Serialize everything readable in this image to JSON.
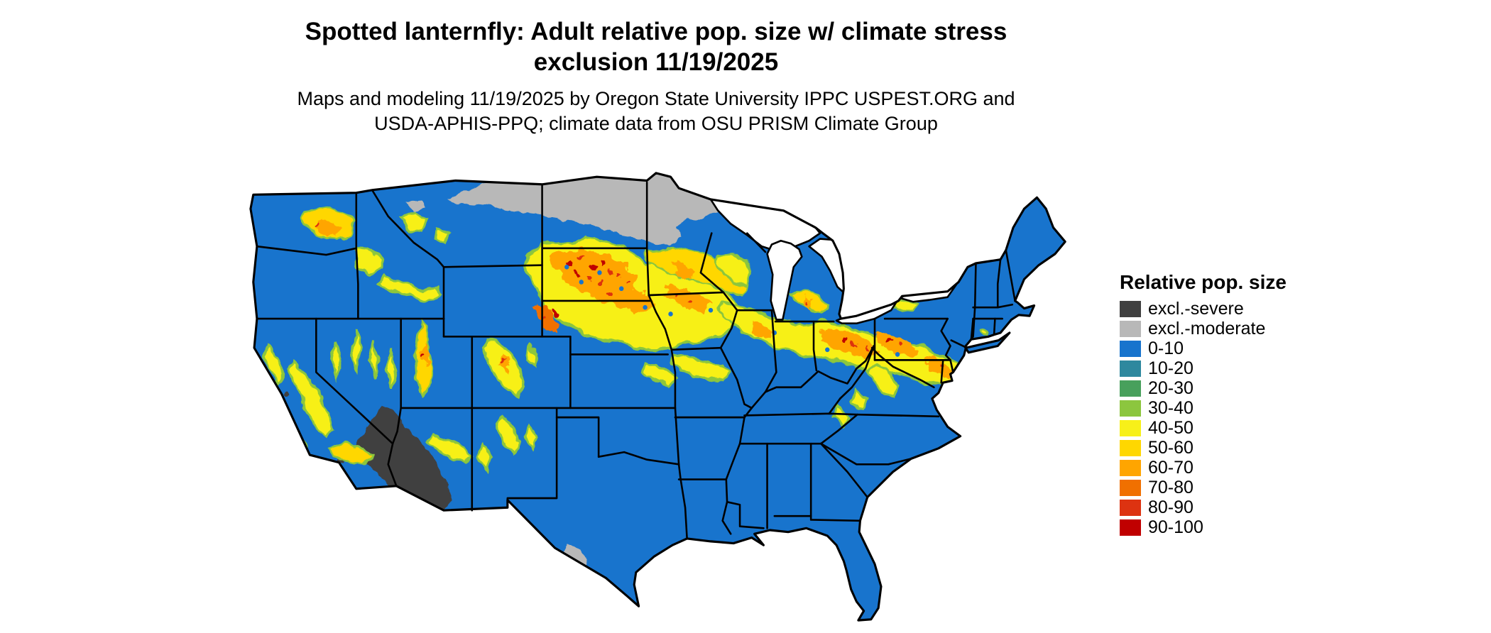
{
  "title": {
    "line1": "Spotted lanternfly: Adult relative pop. size w/ climate stress",
    "line2": "exclusion 11/19/2025"
  },
  "subtitle": {
    "line1": "Maps and modeling 11/19/2025 by Oregon State University IPPC USPEST.ORG and",
    "line2": "USDA-APHIS-PPQ; climate data from OSU PRISM Climate Group"
  },
  "legend": {
    "heading": "Relative pop. size",
    "items": [
      {
        "key": "sev",
        "label": "excl.-severe",
        "color": "#404040"
      },
      {
        "key": "mod",
        "label": "excl.-moderate",
        "color": "#b8b8b8"
      },
      {
        "key": "b0",
        "label": "0-10",
        "color": "#1874cd"
      },
      {
        "key": "b10",
        "label": "10-20",
        "color": "#2e889e"
      },
      {
        "key": "b20",
        "label": "20-30",
        "color": "#48a05c"
      },
      {
        "key": "b30",
        "label": "30-40",
        "color": "#8cc63e"
      },
      {
        "key": "b40",
        "label": "40-50",
        "color": "#f7f019"
      },
      {
        "key": "b50",
        "label": "50-60",
        "color": "#ffd700"
      },
      {
        "key": "b60",
        "label": "60-70",
        "color": "#ffa500"
      },
      {
        "key": "b70",
        "label": "70-80",
        "color": "#f07000"
      },
      {
        "key": "b80",
        "label": "80-90",
        "color": "#dd3311"
      },
      {
        "key": "b90",
        "label": "90-100",
        "color": "#c00000"
      }
    ]
  },
  "map": {
    "region": "Contiguous United States",
    "border_color": "#000000",
    "water_color": "#ffffff"
  }
}
